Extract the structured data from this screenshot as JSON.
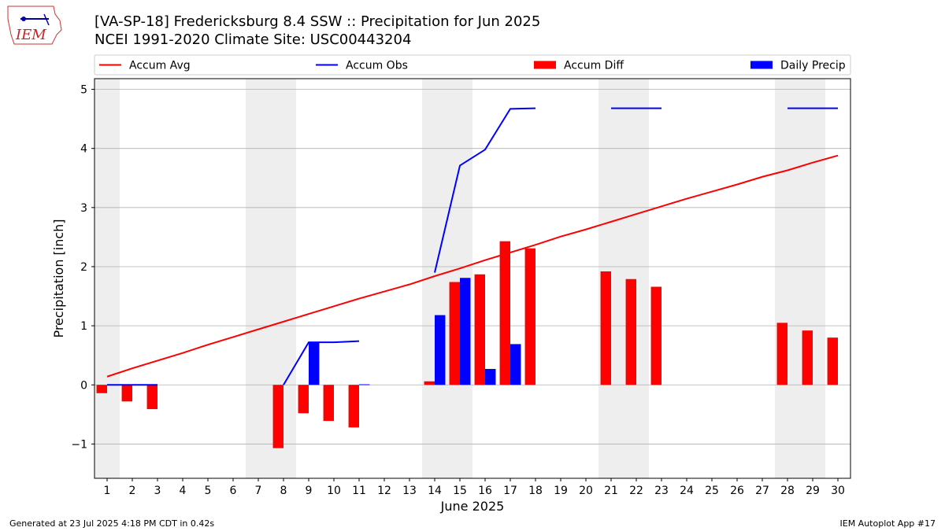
{
  "title_line1": "[VA-SP-18] Fredericksburg 8.4 SSW :: Precipitation for Jun 2025",
  "title_line2": "NCEI 1991-2020 Climate Site: USC00443204",
  "logo_text": "IEM",
  "footer_left": "Generated at 23 Jul 2025 4:18 PM CDT in 0.42s",
  "footer_right": "IEM Autoplot App #17",
  "colors": {
    "avg": "#ff0000",
    "obs": "#0000ff",
    "diff": "#ff0000",
    "daily": "#0000ff",
    "weekend": "#eeeeee",
    "grid": "#b0b0b0"
  },
  "chart_data": {
    "type": "bar",
    "xlabel": "June 2025",
    "ylabel": "Precipitation [inch]",
    "xlim": [
      0.5,
      30.5
    ],
    "ylim": [
      -1.58,
      5.18
    ],
    "yticks": [
      -1,
      0,
      1,
      2,
      3,
      4,
      5
    ],
    "ytick_labels": [
      "−1",
      "0",
      "1",
      "2",
      "3",
      "4",
      "5"
    ],
    "days": [
      1,
      2,
      3,
      4,
      5,
      6,
      7,
      8,
      9,
      10,
      11,
      12,
      13,
      14,
      15,
      16,
      17,
      18,
      19,
      20,
      21,
      22,
      23,
      24,
      25,
      26,
      27,
      28,
      29,
      30
    ],
    "weekend_bands": [
      [
        0.5,
        1.5
      ],
      [
        6.5,
        8.5
      ],
      [
        13.5,
        15.5
      ],
      [
        20.5,
        22.5
      ],
      [
        27.5,
        29.5
      ]
    ],
    "legend": [
      "Accum Avg",
      "Accum Obs",
      "Accum Diff",
      "Daily Precip"
    ],
    "accum_avg": [
      0.14,
      0.28,
      0.41,
      0.54,
      0.68,
      0.81,
      0.94,
      1.07,
      1.2,
      1.33,
      1.46,
      1.58,
      1.7,
      1.84,
      1.97,
      2.11,
      2.24,
      2.37,
      2.51,
      2.63,
      2.76,
      2.89,
      3.02,
      3.15,
      3.27,
      3.39,
      3.52,
      3.63,
      3.76,
      3.88
    ],
    "accum_obs": [
      0,
      0,
      0,
      null,
      null,
      null,
      null,
      0,
      0.72,
      0.72,
      0.74,
      null,
      null,
      1.9,
      3.71,
      3.98,
      4.67,
      4.68,
      null,
      null,
      4.68,
      4.68,
      4.68,
      null,
      null,
      null,
      null,
      4.68,
      4.68,
      4.68
    ],
    "accum_diff": [
      -0.14,
      -0.28,
      -0.41,
      null,
      null,
      null,
      null,
      -1.07,
      -0.48,
      -0.61,
      -0.72,
      null,
      null,
      0.06,
      1.74,
      1.87,
      2.43,
      2.31,
      null,
      null,
      1.92,
      1.79,
      1.66,
      null,
      null,
      null,
      null,
      1.05,
      0.92,
      0.8
    ],
    "daily_precip": [
      0,
      0,
      0,
      null,
      null,
      null,
      null,
      0,
      0.72,
      0,
      0.01,
      null,
      null,
      1.18,
      1.81,
      0.27,
      0.69,
      0,
      null,
      null,
      0,
      0,
      0,
      null,
      null,
      null,
      null,
      0,
      0,
      0
    ]
  }
}
